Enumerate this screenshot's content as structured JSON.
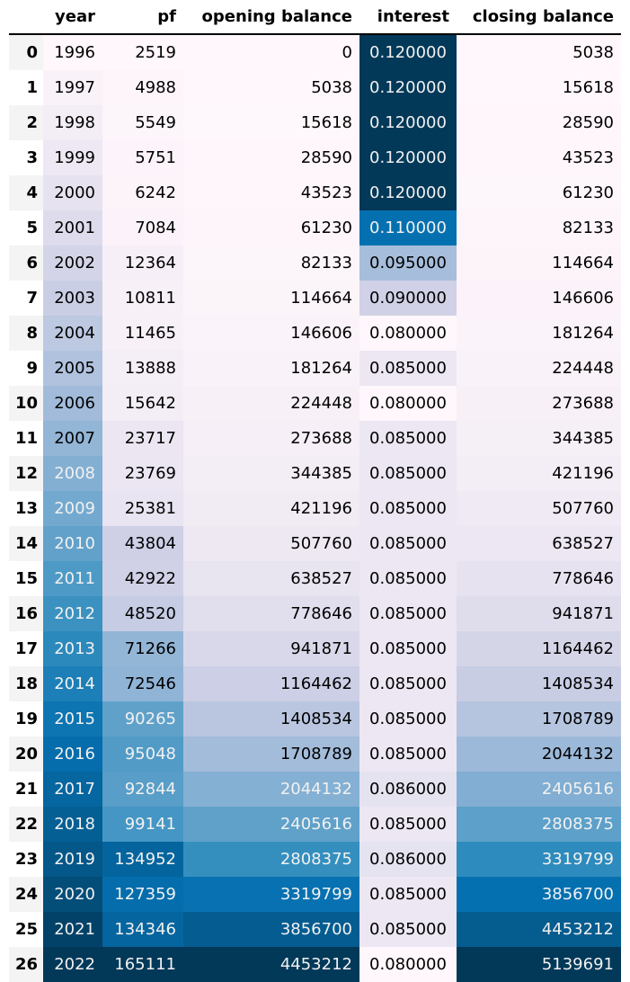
{
  "columns": [
    "year",
    "pf",
    "opening balance",
    "interest",
    "closing balance"
  ],
  "rows": [
    {
      "index": "0",
      "year": "1996",
      "pf": "2519",
      "opening_balance": "0",
      "interest": "0.120000",
      "closing_balance": "5038"
    },
    {
      "index": "1",
      "year": "1997",
      "pf": "4988",
      "opening_balance": "5038",
      "interest": "0.120000",
      "closing_balance": "15618"
    },
    {
      "index": "2",
      "year": "1998",
      "pf": "5549",
      "opening_balance": "15618",
      "interest": "0.120000",
      "closing_balance": "28590"
    },
    {
      "index": "3",
      "year": "1999",
      "pf": "5751",
      "opening_balance": "28590",
      "interest": "0.120000",
      "closing_balance": "43523"
    },
    {
      "index": "4",
      "year": "2000",
      "pf": "6242",
      "opening_balance": "43523",
      "interest": "0.120000",
      "closing_balance": "61230"
    },
    {
      "index": "5",
      "year": "2001",
      "pf": "7084",
      "opening_balance": "61230",
      "interest": "0.110000",
      "closing_balance": "82133"
    },
    {
      "index": "6",
      "year": "2002",
      "pf": "12364",
      "opening_balance": "82133",
      "interest": "0.095000",
      "closing_balance": "114664"
    },
    {
      "index": "7",
      "year": "2003",
      "pf": "10811",
      "opening_balance": "114664",
      "interest": "0.090000",
      "closing_balance": "146606"
    },
    {
      "index": "8",
      "year": "2004",
      "pf": "11465",
      "opening_balance": "146606",
      "interest": "0.080000",
      "closing_balance": "181264"
    },
    {
      "index": "9",
      "year": "2005",
      "pf": "13888",
      "opening_balance": "181264",
      "interest": "0.085000",
      "closing_balance": "224448"
    },
    {
      "index": "10",
      "year": "2006",
      "pf": "15642",
      "opening_balance": "224448",
      "interest": "0.080000",
      "closing_balance": "273688"
    },
    {
      "index": "11",
      "year": "2007",
      "pf": "23717",
      "opening_balance": "273688",
      "interest": "0.085000",
      "closing_balance": "344385"
    },
    {
      "index": "12",
      "year": "2008",
      "pf": "23769",
      "opening_balance": "344385",
      "interest": "0.085000",
      "closing_balance": "421196"
    },
    {
      "index": "13",
      "year": "2009",
      "pf": "25381",
      "opening_balance": "421196",
      "interest": "0.085000",
      "closing_balance": "507760"
    },
    {
      "index": "14",
      "year": "2010",
      "pf": "43804",
      "opening_balance": "507760",
      "interest": "0.085000",
      "closing_balance": "638527"
    },
    {
      "index": "15",
      "year": "2011",
      "pf": "42922",
      "opening_balance": "638527",
      "interest": "0.085000",
      "closing_balance": "778646"
    },
    {
      "index": "16",
      "year": "2012",
      "pf": "48520",
      "opening_balance": "778646",
      "interest": "0.085000",
      "closing_balance": "941871"
    },
    {
      "index": "17",
      "year": "2013",
      "pf": "71266",
      "opening_balance": "941871",
      "interest": "0.085000",
      "closing_balance": "1164462"
    },
    {
      "index": "18",
      "year": "2014",
      "pf": "72546",
      "opening_balance": "1164462",
      "interest": "0.085000",
      "closing_balance": "1408534"
    },
    {
      "index": "19",
      "year": "2015",
      "pf": "90265",
      "opening_balance": "1408534",
      "interest": "0.085000",
      "closing_balance": "1708789"
    },
    {
      "index": "20",
      "year": "2016",
      "pf": "95048",
      "opening_balance": "1708789",
      "interest": "0.085000",
      "closing_balance": "2044132"
    },
    {
      "index": "21",
      "year": "2017",
      "pf": "92844",
      "opening_balance": "2044132",
      "interest": "0.086000",
      "closing_balance": "2405616"
    },
    {
      "index": "22",
      "year": "2018",
      "pf": "99141",
      "opening_balance": "2405616",
      "interest": "0.085000",
      "closing_balance": "2808375"
    },
    {
      "index": "23",
      "year": "2019",
      "pf": "134952",
      "opening_balance": "2808375",
      "interest": "0.086000",
      "closing_balance": "3319799"
    },
    {
      "index": "24",
      "year": "2020",
      "pf": "127359",
      "opening_balance": "3319799",
      "interest": "0.085000",
      "closing_balance": "3856700"
    },
    {
      "index": "25",
      "year": "2021",
      "pf": "134346",
      "opening_balance": "3856700",
      "interest": "0.085000",
      "closing_balance": "4453212"
    },
    {
      "index": "26",
      "year": "2022",
      "pf": "165111",
      "opening_balance": "4453212",
      "interest": "0.080000",
      "closing_balance": "5139691"
    }
  ],
  "colors": {
    "colormap": "PuBu",
    "stops": [
      "#fff7fb",
      "#ece7f2",
      "#d0d1e6",
      "#a6bddb",
      "#74a9cf",
      "#3690c0",
      "#0570b0",
      "#045a8d",
      "#023858"
    ],
    "index_band": "#f4f4f4",
    "header_rule": "#000000"
  }
}
